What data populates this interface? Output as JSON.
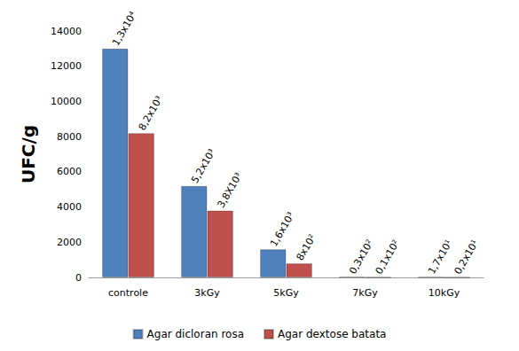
{
  "chart_data": {
    "type": "bar",
    "y_label": "UFC/g",
    "categories": [
      "controle",
      "3kGy",
      "5kGy",
      "7kGy",
      "10kGy"
    ],
    "series": [
      {
        "name": "Agar dicloran rosa",
        "color": "#4f81bd",
        "values": [
          13000,
          5200,
          1600,
          30,
          17
        ],
        "value_labels": [
          "1,3x10⁴",
          "5,2x10³",
          "1,6x10³",
          "0,3x10²",
          "1,7x10¹"
        ]
      },
      {
        "name": "Agar dextose batata",
        "color": "#c0504d",
        "values": [
          8200,
          3800,
          800,
          10,
          2
        ],
        "value_labels": [
          "8,2x10³",
          "3,8X10³",
          "8x10²",
          "0,1x10²",
          "0,2x10¹"
        ]
      }
    ],
    "ylim": [
      0,
      14000
    ],
    "yticks": [
      0,
      2000,
      4000,
      6000,
      8000,
      10000,
      12000,
      14000
    ],
    "grid": false,
    "legend": "bottom",
    "data_labels": true
  }
}
